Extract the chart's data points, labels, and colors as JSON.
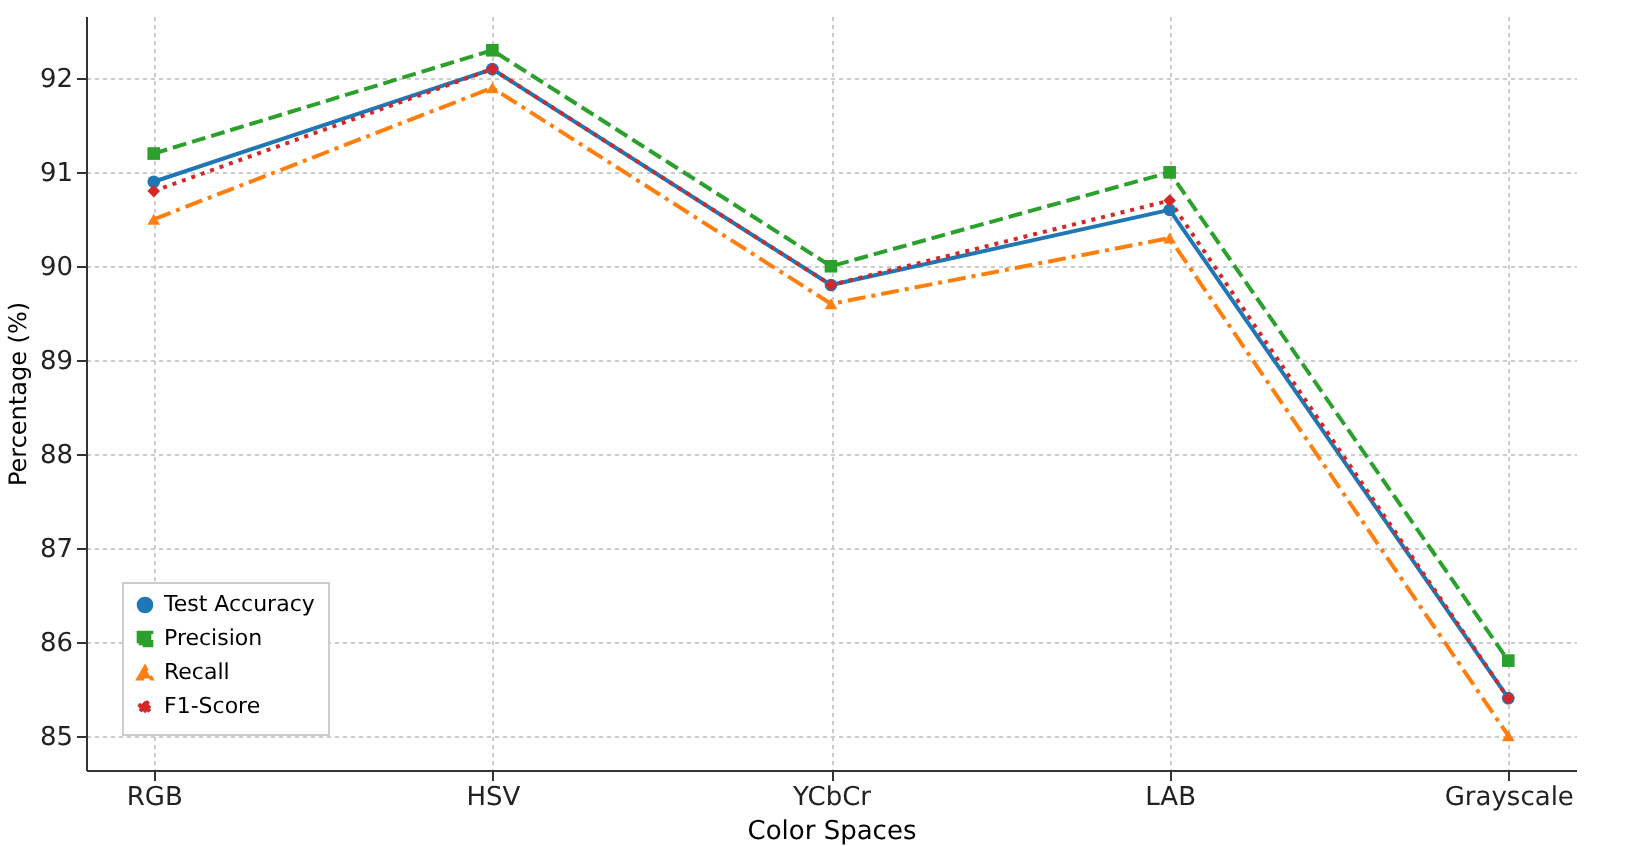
{
  "chart_data": {
    "type": "line",
    "xlabel": "Color Spaces",
    "ylabel": "Percentage (%)",
    "categories": [
      "RGB",
      "HSV",
      "YCbCr",
      "LAB",
      "Grayscale"
    ],
    "series": [
      {
        "name": "Test Accuracy",
        "color": "#1f77b4",
        "marker": "circle",
        "line_style": "solid",
        "values": [
          90.9,
          92.1,
          89.8,
          90.6,
          85.4
        ]
      },
      {
        "name": "Precision",
        "color": "#2ca02c",
        "marker": "square",
        "line_style": "dashed",
        "values": [
          91.2,
          92.3,
          90.0,
          91.0,
          85.8
        ]
      },
      {
        "name": "Recall",
        "color": "#ff7f0e",
        "marker": "triangle",
        "line_style": "dashdot",
        "values": [
          90.5,
          91.9,
          89.6,
          90.3,
          85.0
        ]
      },
      {
        "name": "F1-Score",
        "color": "#d62728",
        "marker": "diamond",
        "line_style": "dotted",
        "values": [
          90.8,
          92.1,
          89.8,
          90.7,
          85.4
        ]
      }
    ],
    "ylim": [
      84.635,
      92.665
    ],
    "yticks": [
      85,
      86,
      87,
      88,
      89,
      90,
      91,
      92
    ],
    "grid": true,
    "legend": "bottom left"
  }
}
